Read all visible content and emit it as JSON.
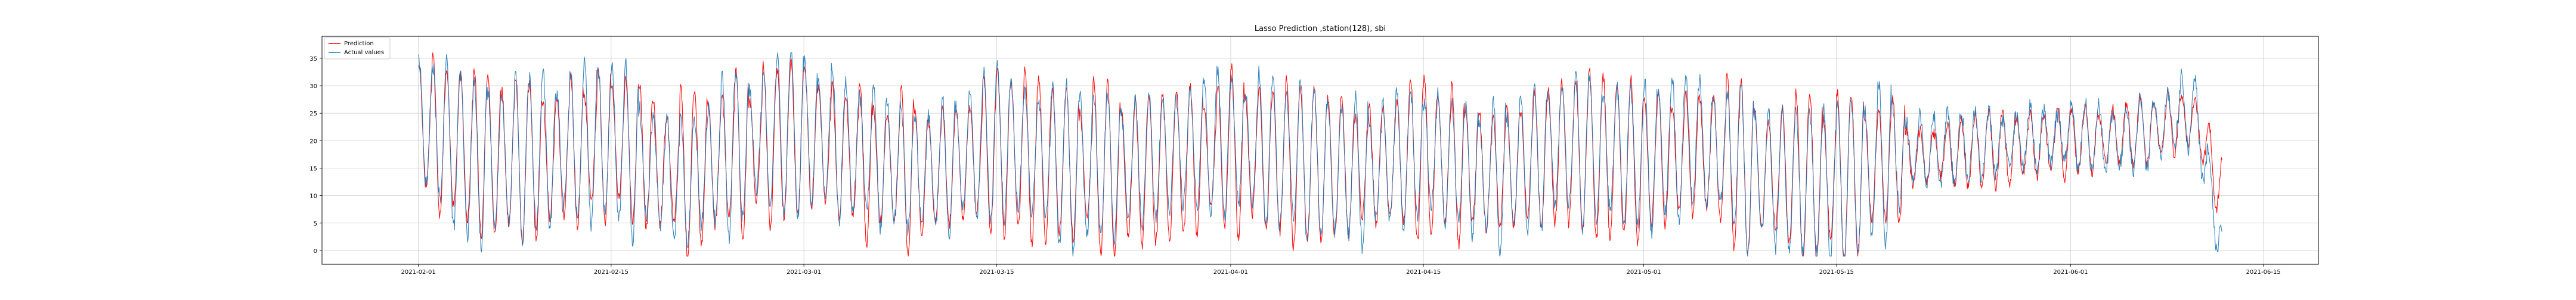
{
  "chart_data": {
    "type": "line",
    "title": "Lasso Prediction ,station(128), sbi",
    "xlabel": "",
    "ylabel": "",
    "x_range": [
      "2021-01-25",
      "2021-06-19"
    ],
    "x_ticks": [
      "2021-02-01",
      "2021-02-15",
      "2021-03-01",
      "2021-03-15",
      "2021-04-01",
      "2021-04-15",
      "2021-05-01",
      "2021-05-15",
      "2021-06-01",
      "2021-06-15"
    ],
    "ylim": [
      -2.5,
      39
    ],
    "y_ticks": [
      0,
      5,
      10,
      15,
      20,
      25,
      30,
      35
    ],
    "grid": true,
    "legend": {
      "position": "upper-left",
      "entries": [
        "Prediction",
        "Actual values"
      ]
    },
    "data_start": "2021-02-01T00:00",
    "data_end": "2021-06-12T00:00",
    "sampling": "hourly (approximately)",
    "daily_shape": "roughly one cycle per day between a low (~2-5) and high (~25-32); after ~2021-05-20 values stay mostly in 10-30",
    "series": [
      {
        "name": "Prediction",
        "color": "#ff0000",
        "approx_values": {
          "2021-02-01": 27,
          "2021-02-05": 22,
          "2021-02-10": 20,
          "2021-02-15": 24,
          "2021-02-20": 18,
          "2021-02-25": 22,
          "2021-03-01": 25,
          "2021-03-05": 20,
          "2021-03-10": 18,
          "2021-03-15": 22,
          "2021-03-20": 20,
          "2021-03-25": 18,
          "2021-04-01": 22,
          "2021-04-05": 20,
          "2021-04-10": 19,
          "2021-04-15": 21,
          "2021-04-20": 18,
          "2021-04-25": 22,
          "2021-05-01": 20,
          "2021-05-05": 22,
          "2021-05-10": 18,
          "2021-05-15": 17,
          "2021-05-20": 21,
          "2021-05-25": 22,
          "2021-06-01": 24,
          "2021-06-05": 25,
          "2021-06-10": 28,
          "2021-06-12": 15
        }
      },
      {
        "name": "Actual values",
        "color": "#1f77b4",
        "approx_values": {
          "2021-02-01": 28,
          "2021-02-05": 20,
          "2021-02-10": 22,
          "2021-02-15": 24,
          "2021-02-20": 16,
          "2021-02-25": 24,
          "2021-03-01": 26,
          "2021-03-05": 22,
          "2021-03-10": 18,
          "2021-03-15": 24,
          "2021-03-20": 19,
          "2021-03-25": 20,
          "2021-04-01": 24,
          "2021-04-05": 21,
          "2021-04-10": 18,
          "2021-04-15": 22,
          "2021-04-20": 17,
          "2021-04-25": 23,
          "2021-05-01": 21,
          "2021-05-05": 24,
          "2021-05-10": 17,
          "2021-05-15": 16,
          "2021-05-20": 22,
          "2021-05-25": 23,
          "2021-06-01": 25,
          "2021-06-05": 24,
          "2021-06-10": 30,
          "2021-06-12": 4
        }
      }
    ]
  }
}
